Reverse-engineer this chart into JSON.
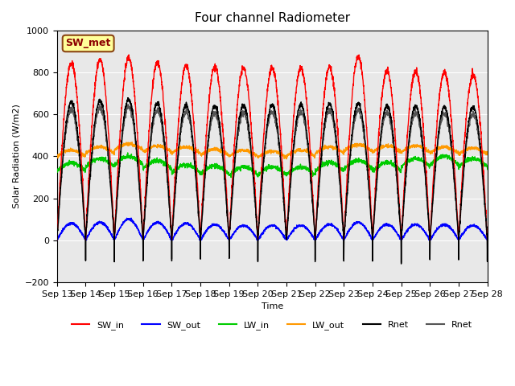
{
  "title": "Four channel Radiometer",
  "ylabel": "Solar Radiation (W/m2)",
  "xlabel": "Time",
  "ylim": [
    -200,
    1000
  ],
  "xlim": [
    0,
    15
  ],
  "xtick_positions": [
    0,
    1,
    2,
    3,
    4,
    5,
    6,
    7,
    8,
    9,
    10,
    11,
    12,
    13,
    14,
    15
  ],
  "xtick_labels": [
    "Sep 13",
    "Sep 14",
    "Sep 15",
    "Sep 16",
    "Sep 17",
    "Sep 18",
    "Sep 19",
    "Sep 20",
    "Sep 21",
    "Sep 22",
    "Sep 23",
    "Sep 24",
    "Sep 25",
    "Sep 26",
    "Sep 27",
    "Sep 28"
  ],
  "bg_color": "#e8e8e8",
  "legend_box_label": "SW_met",
  "legend_box_facecolor": "#ffff99",
  "legend_box_edgecolor": "#8b4513",
  "series": {
    "SW_in": {
      "color": "#ff0000",
      "label": "SW_in"
    },
    "SW_out": {
      "color": "#0000ff",
      "label": "SW_out"
    },
    "LW_in": {
      "color": "#00cc00",
      "label": "LW_in"
    },
    "LW_out": {
      "color": "#ff9900",
      "label": "LW_out"
    },
    "Rnet1": {
      "color": "#000000",
      "label": "Rnet"
    },
    "Rnet2": {
      "color": "#555555",
      "label": "Rnet"
    }
  }
}
